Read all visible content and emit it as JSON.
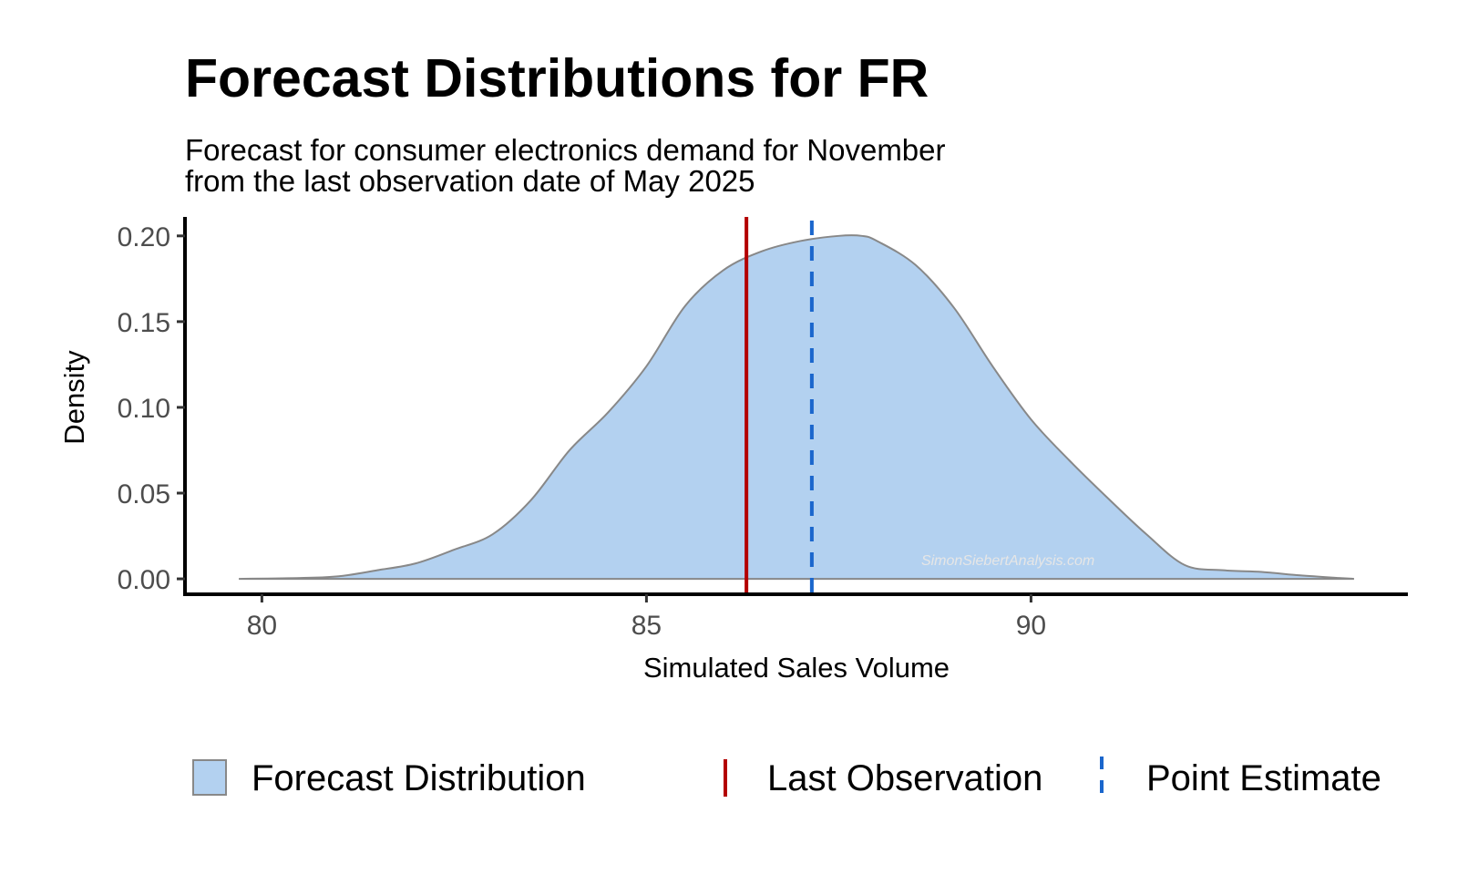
{
  "chart_data": {
    "type": "area",
    "title": "Forecast Distributions for FR",
    "subtitle_lines": [
      "Forecast for consumer electronics demand for November",
      "from the last observation date of May 2025"
    ],
    "xlabel": "Simulated Sales Volume",
    "ylabel": "Density",
    "xlim": [
      79,
      94.9
    ],
    "ylim": [
      -0.009,
      0.21
    ],
    "x_ticks": [
      80,
      85,
      90
    ],
    "y_ticks": [
      0.0,
      0.05,
      0.1,
      0.15,
      0.2
    ],
    "y_tick_labels": [
      "0.00",
      "0.05",
      "0.10",
      "0.15",
      "0.20"
    ],
    "grid": false,
    "legend_position": "bottom",
    "watermark": "SimonSiebertAnalysis.com",
    "series": [
      {
        "name": "Forecast Distribution",
        "kind": "density",
        "fill": "#b3d1f0",
        "stroke": "#888888",
        "x": [
          79.7,
          80.5,
          81.0,
          81.5,
          82.0,
          82.5,
          83.0,
          83.5,
          84.0,
          84.5,
          85.0,
          85.5,
          86.0,
          86.5,
          87.0,
          87.5,
          87.8,
          88.0,
          88.5,
          89.0,
          89.5,
          90.0,
          90.5,
          91.0,
          91.5,
          92.0,
          92.5,
          93.0,
          93.5,
          94.0,
          94.2
        ],
        "y": [
          0.0,
          0.0005,
          0.0015,
          0.005,
          0.009,
          0.017,
          0.026,
          0.046,
          0.075,
          0.097,
          0.124,
          0.159,
          0.18,
          0.191,
          0.197,
          0.2,
          0.2,
          0.197,
          0.183,
          0.158,
          0.124,
          0.093,
          0.069,
          0.047,
          0.026,
          0.008,
          0.005,
          0.004,
          0.002,
          0.0005,
          0.0
        ]
      },
      {
        "name": "Last Observation",
        "kind": "vline",
        "x": 86.3,
        "color": "#b30000",
        "dash": "solid"
      },
      {
        "name": "Point Estimate",
        "kind": "vline",
        "x": 87.15,
        "color": "#1a66cc",
        "dash": "dashed"
      }
    ]
  }
}
